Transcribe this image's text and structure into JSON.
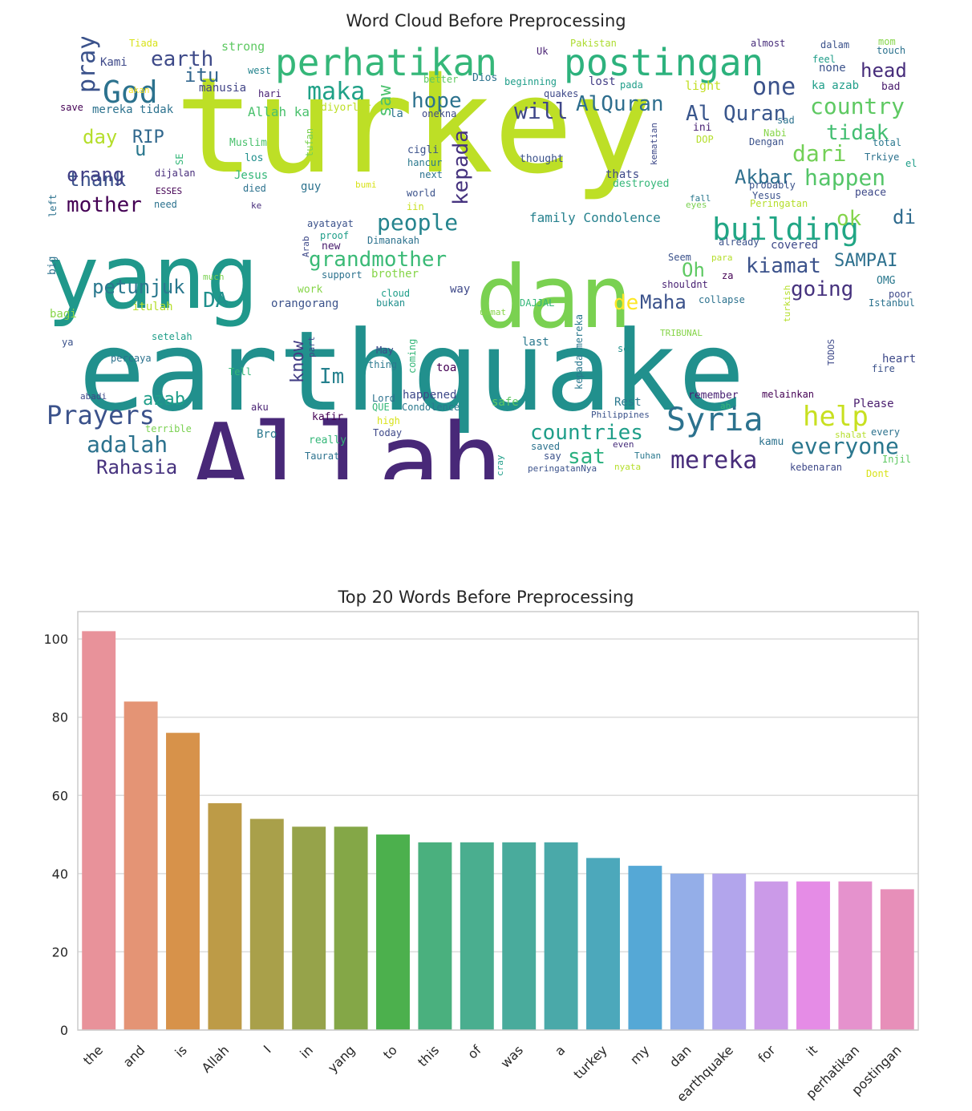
{
  "wordcloud": {
    "title": "Word Cloud Before Preprocessing",
    "words": [
      {
        "t": "turkey",
        "c": "#bddf26"
      },
      {
        "t": "earthquake",
        "c": "#21908d"
      },
      {
        "t": "yang",
        "c": "#1f988b"
      },
      {
        "t": "dan",
        "c": "#7ad151"
      },
      {
        "t": "Allah",
        "c": "#482878"
      },
      {
        "t": "perhatikan",
        "c": "#35b779"
      },
      {
        "t": "postingan",
        "c": "#2db27d"
      },
      {
        "t": "God",
        "c": "#2c728e"
      },
      {
        "t": "pray",
        "c": "#3b528b"
      },
      {
        "t": "earth",
        "c": "#3e4a89"
      },
      {
        "t": "itu",
        "c": "#31668e"
      },
      {
        "t": "maka",
        "c": "#1fa187"
      },
      {
        "t": "one",
        "c": "#3b528b"
      },
      {
        "t": "head",
        "c": "#472d7b"
      },
      {
        "t": "hope",
        "c": "#2c728e"
      },
      {
        "t": "AlQuran",
        "c": "#2e6e8e"
      },
      {
        "t": "Al Quran",
        "c": "#39568c"
      },
      {
        "t": "country",
        "c": "#5ec962"
      },
      {
        "t": "will",
        "c": "#3f4788"
      },
      {
        "t": "saw",
        "c": "#4ac16d"
      },
      {
        "t": "day",
        "c": "#b5de2b"
      },
      {
        "t": "RIP",
        "c": "#31688e"
      },
      {
        "t": "tidak",
        "c": "#42be71"
      },
      {
        "t": "dari",
        "c": "#73d056"
      },
      {
        "t": "thank",
        "c": "#3b528b"
      },
      {
        "t": "u",
        "c": "#2a788e"
      },
      {
        "t": "orang",
        "c": "#424086"
      },
      {
        "t": "kepada",
        "c": "#46337f"
      },
      {
        "t": "Akbar",
        "c": "#2e6f8e"
      },
      {
        "t": "happen",
        "c": "#54c568"
      },
      {
        "t": "mother",
        "c": "#440154"
      },
      {
        "t": "building",
        "c": "#21a685"
      },
      {
        "t": "ok",
        "c": "#84d44b"
      },
      {
        "t": "di",
        "c": "#2f6b8e"
      },
      {
        "t": "people",
        "c": "#25848e"
      },
      {
        "t": "family Condolence",
        "c": "#26818e"
      },
      {
        "t": "grandmother",
        "c": "#3aba76"
      },
      {
        "t": "kiamat",
        "c": "#3b528b"
      },
      {
        "t": "SAMPAI",
        "c": "#2d708e"
      },
      {
        "t": "Oh",
        "c": "#5ec962"
      },
      {
        "t": "going",
        "c": "#46327e"
      },
      {
        "t": "petunjuk",
        "c": "#2a788e"
      },
      {
        "t": "DA",
        "c": "#21908d"
      },
      {
        "t": "de",
        "c": "#fde725"
      },
      {
        "t": "Maha",
        "c": "#3b528b"
      },
      {
        "t": "know",
        "c": "#433e85"
      },
      {
        "t": "Im",
        "c": "#26818e"
      },
      {
        "t": "azab",
        "c": "#1f9e89"
      },
      {
        "t": "Prayers",
        "c": "#3b528b"
      },
      {
        "t": "adalah",
        "c": "#2c728e"
      },
      {
        "t": "Rahasia",
        "c": "#46327e"
      },
      {
        "t": "Syria",
        "c": "#2c728e"
      },
      {
        "t": "help",
        "c": "#c8e020"
      },
      {
        "t": "countries",
        "c": "#1f9e89"
      },
      {
        "t": "sat",
        "c": "#2ab07f"
      },
      {
        "t": "mereka",
        "c": "#472c7a"
      },
      {
        "t": "everyone",
        "c": "#2a778e"
      },
      {
        "t": "Tiada",
        "c": "#d8e219"
      },
      {
        "t": "strong",
        "c": "#5ec962"
      },
      {
        "t": "Kami",
        "c": "#3e4989"
      },
      {
        "t": "west",
        "c": "#25848e"
      },
      {
        "t": "hari",
        "c": "#482173"
      },
      {
        "t": "manusia",
        "c": "#414487"
      },
      {
        "t": "save",
        "c": "#440154"
      },
      {
        "t": "mereka tidak",
        "c": "#2c728e"
      },
      {
        "t": "akan",
        "c": "#fde725"
      },
      {
        "t": "Allah ka",
        "c": "#4ac16d"
      },
      {
        "t": "diyorlar",
        "c": "#bddf26"
      },
      {
        "t": "la",
        "c": "#2c728e"
      },
      {
        "t": "onekna",
        "c": "#3e4989"
      },
      {
        "t": "Uk",
        "c": "#482173"
      },
      {
        "t": "Pakistan",
        "c": "#addc30"
      },
      {
        "t": "better",
        "c": "#5ec962"
      },
      {
        "t": "Dios",
        "c": "#2c728e"
      },
      {
        "t": "beginning",
        "c": "#1f9e89"
      },
      {
        "t": "quakes",
        "c": "#3e4989"
      },
      {
        "t": "lost",
        "c": "#433e85"
      },
      {
        "t": "pada",
        "c": "#1f9e89"
      },
      {
        "t": "light",
        "c": "#c2df23"
      },
      {
        "t": "almost",
        "c": "#472d7b"
      },
      {
        "t": "dalam",
        "c": "#3b528b"
      },
      {
        "t": "mom",
        "c": "#86d549"
      },
      {
        "t": "touch",
        "c": "#2c728e"
      },
      {
        "t": "feel",
        "c": "#1f9e89"
      },
      {
        "t": "none",
        "c": "#3b528b"
      },
      {
        "t": "ka azab",
        "c": "#1f9e89"
      },
      {
        "t": "bad",
        "c": "#481b6d"
      },
      {
        "t": "sad",
        "c": "#2c728e"
      },
      {
        "t": "ini",
        "c": "#482173"
      },
      {
        "t": "Nabi",
        "c": "#86d549"
      },
      {
        "t": "DOP",
        "c": "#b5de2b"
      },
      {
        "t": "total",
        "c": "#2a788e"
      },
      {
        "t": "Dengan",
        "c": "#3b528b"
      },
      {
        "t": "Trkiye",
        "c": "#2c728e"
      },
      {
        "t": "el",
        "c": "#1f9e89"
      },
      {
        "t": "Muslim",
        "c": "#4ac16d"
      },
      {
        "t": "los",
        "c": "#21908d"
      },
      {
        "t": "tufan",
        "c": "#7ad151"
      },
      {
        "t": "SE",
        "c": "#35b779"
      },
      {
        "t": "cigli",
        "c": "#3b528b"
      },
      {
        "t": "hancur",
        "c": "#2a788e"
      },
      {
        "t": "next",
        "c": "#2c728e"
      },
      {
        "t": "thought",
        "c": "#3b528b"
      },
      {
        "t": "thats",
        "c": "#3e4989"
      },
      {
        "t": "destroyed",
        "c": "#35b779"
      },
      {
        "t": "kematian",
        "c": "#3e4989"
      },
      {
        "t": "probably",
        "c": "#3b528b"
      },
      {
        "t": "Yesus",
        "c": "#3b528b"
      },
      {
        "t": "Peringatan",
        "c": "#b5de2b"
      },
      {
        "t": "peace",
        "c": "#3e4989"
      },
      {
        "t": "dijalan",
        "c": "#472d7b"
      },
      {
        "t": "Jesus",
        "c": "#35b779"
      },
      {
        "t": "died",
        "c": "#2c728e"
      },
      {
        "t": "guy",
        "c": "#2c728e"
      },
      {
        "t": "bumi",
        "c": "#d8e219"
      },
      {
        "t": "world",
        "c": "#3b528b"
      },
      {
        "t": "iin",
        "c": "#c8e020"
      },
      {
        "t": "fall",
        "c": "#2a788e"
      },
      {
        "t": "eyes",
        "c": "#7ad151"
      },
      {
        "t": "left",
        "c": "#2c728e"
      },
      {
        "t": "ESSES",
        "c": "#440154"
      },
      {
        "t": "need",
        "c": "#2c728e"
      },
      {
        "t": "ke",
        "c": "#472d7b"
      },
      {
        "t": "ayatayat",
        "c": "#3b528b"
      },
      {
        "t": "proof",
        "c": "#1f9e89"
      },
      {
        "t": "Arab",
        "c": "#3e4989"
      },
      {
        "t": "Dimanakah",
        "c": "#2c728e"
      },
      {
        "t": "already",
        "c": "#3b528b"
      },
      {
        "t": "covered",
        "c": "#3e4989"
      },
      {
        "t": "big",
        "c": "#2c728e"
      },
      {
        "t": "new",
        "c": "#481b6d"
      },
      {
        "t": "support",
        "c": "#2c728e"
      },
      {
        "t": "brother",
        "c": "#86d549"
      },
      {
        "t": "Seem",
        "c": "#3b528b"
      },
      {
        "t": "para",
        "c": "#b5de2b"
      },
      {
        "t": "za",
        "c": "#440154"
      },
      {
        "t": "OMG",
        "c": "#2a788e"
      },
      {
        "t": "much",
        "c": "#7ad151"
      },
      {
        "t": "work",
        "c": "#86d549"
      },
      {
        "t": "cloud",
        "c": "#1f9e89"
      },
      {
        "t": "bukan",
        "c": "#21908d"
      },
      {
        "t": "way",
        "c": "#3e4989"
      },
      {
        "t": "shouldnt",
        "c": "#482173"
      },
      {
        "t": "poor",
        "c": "#3e4989"
      },
      {
        "t": "Istanbul",
        "c": "#2c728e"
      },
      {
        "t": "bagi",
        "c": "#86d549"
      },
      {
        "t": "itulah",
        "c": "#b5de2b"
      },
      {
        "t": "orangorang",
        "c": "#3b528b"
      },
      {
        "t": "ummat",
        "c": "#86d549"
      },
      {
        "t": "DAJJAL",
        "c": "#35b779"
      },
      {
        "t": "collapse",
        "c": "#2c728e"
      },
      {
        "t": "turkish",
        "c": "#b5de2b"
      },
      {
        "t": "TRIBUNAL",
        "c": "#86d549"
      },
      {
        "t": "setelah",
        "c": "#1f9e89"
      },
      {
        "t": "percaya",
        "c": "#2c728e"
      },
      {
        "t": "ya",
        "c": "#3b528b"
      },
      {
        "t": "part",
        "c": "#3e4989"
      },
      {
        "t": "May",
        "c": "#3e4989"
      },
      {
        "t": "thing",
        "c": "#2a788e"
      },
      {
        "t": "coming",
        "c": "#35b779"
      },
      {
        "t": "toa",
        "c": "#440154"
      },
      {
        "t": "last",
        "c": "#2a788e"
      },
      {
        "t": "kepada mereka",
        "c": "#2a788e"
      },
      {
        "t": "see",
        "c": "#21908d"
      },
      {
        "t": "TODOS",
        "c": "#3e4989"
      },
      {
        "t": "heart",
        "c": "#3e4989"
      },
      {
        "t": "fire",
        "c": "#3b528b"
      },
      {
        "t": "Tell",
        "c": "#35b779"
      },
      {
        "t": "abadi",
        "c": "#3e4989"
      },
      {
        "t": "aku",
        "c": "#482173"
      },
      {
        "t": "kafir",
        "c": "#440154"
      },
      {
        "t": "Lord",
        "c": "#2c728e"
      },
      {
        "t": "happened",
        "c": "#3e4989"
      },
      {
        "t": "QUE",
        "c": "#35b779"
      },
      {
        "t": "Condolence",
        "c": "#2a788e"
      },
      {
        "t": "high",
        "c": "#d8e219"
      },
      {
        "t": "safe",
        "c": "#5ec962"
      },
      {
        "t": "Rest",
        "c": "#2a788e"
      },
      {
        "t": "Philippines",
        "c": "#3b528b"
      },
      {
        "t": "remember",
        "c": "#482173"
      },
      {
        "t": "melainkan",
        "c": "#440154"
      },
      {
        "t": "ab",
        "c": "#35b779"
      },
      {
        "t": "Please",
        "c": "#481b6d"
      },
      {
        "t": "terrible",
        "c": "#7ad151"
      },
      {
        "t": "Bro",
        "c": "#2a788e"
      },
      {
        "t": "really",
        "c": "#35b779"
      },
      {
        "t": "Taurat",
        "c": "#2c728e"
      },
      {
        "t": "Today",
        "c": "#3e4989"
      },
      {
        "t": "cray",
        "c": "#1f9e89"
      },
      {
        "t": "saved",
        "c": "#2c728e"
      },
      {
        "t": "say",
        "c": "#3b528b"
      },
      {
        "t": "even",
        "c": "#472d7b"
      },
      {
        "t": "Tuhan",
        "c": "#2a788e"
      },
      {
        "t": "peringatanNya",
        "c": "#3b528b"
      },
      {
        "t": "nyata",
        "c": "#b5de2b"
      },
      {
        "t": "kamu",
        "c": "#2c728e"
      },
      {
        "t": "shalat",
        "c": "#b5de2b"
      },
      {
        "t": "every",
        "c": "#2c728e"
      },
      {
        "t": "Injil",
        "c": "#5ec962"
      },
      {
        "t": "kebenaran",
        "c": "#3e4989"
      },
      {
        "t": "Dont",
        "c": "#d8e219"
      }
    ]
  },
  "chart_data": {
    "type": "bar",
    "title": "Top 20 Words Before Preprocessing",
    "categories": [
      "the",
      "and",
      "is",
      "Allah",
      "I",
      "in",
      "yang",
      "to",
      "this",
      "of",
      "was",
      "a",
      "turkey",
      "my",
      "dan",
      "earthquake",
      "for",
      "it",
      "perhatikan",
      "postingan"
    ],
    "values": [
      102,
      84,
      76,
      58,
      54,
      52,
      52,
      50,
      48,
      48,
      48,
      48,
      44,
      42,
      40,
      40,
      38,
      38,
      38,
      36
    ],
    "colors": [
      "#e8929a",
      "#e49475",
      "#d7924a",
      "#bd9b47",
      "#a9a04a",
      "#96a34a",
      "#84a747",
      "#4cb04d",
      "#4ab07e",
      "#4aae8f",
      "#49ab9c",
      "#4aa9a9",
      "#4ca8bb",
      "#55a8d6",
      "#94aee8",
      "#b2a5ec",
      "#cb9ae8",
      "#e58ce6",
      "#e592cd",
      "#e78fb9"
    ],
    "xlabel": "",
    "ylabel": "",
    "ylim": [
      0,
      107
    ],
    "yticks": [
      0,
      20,
      40,
      60,
      80,
      100
    ],
    "grid": true
  }
}
